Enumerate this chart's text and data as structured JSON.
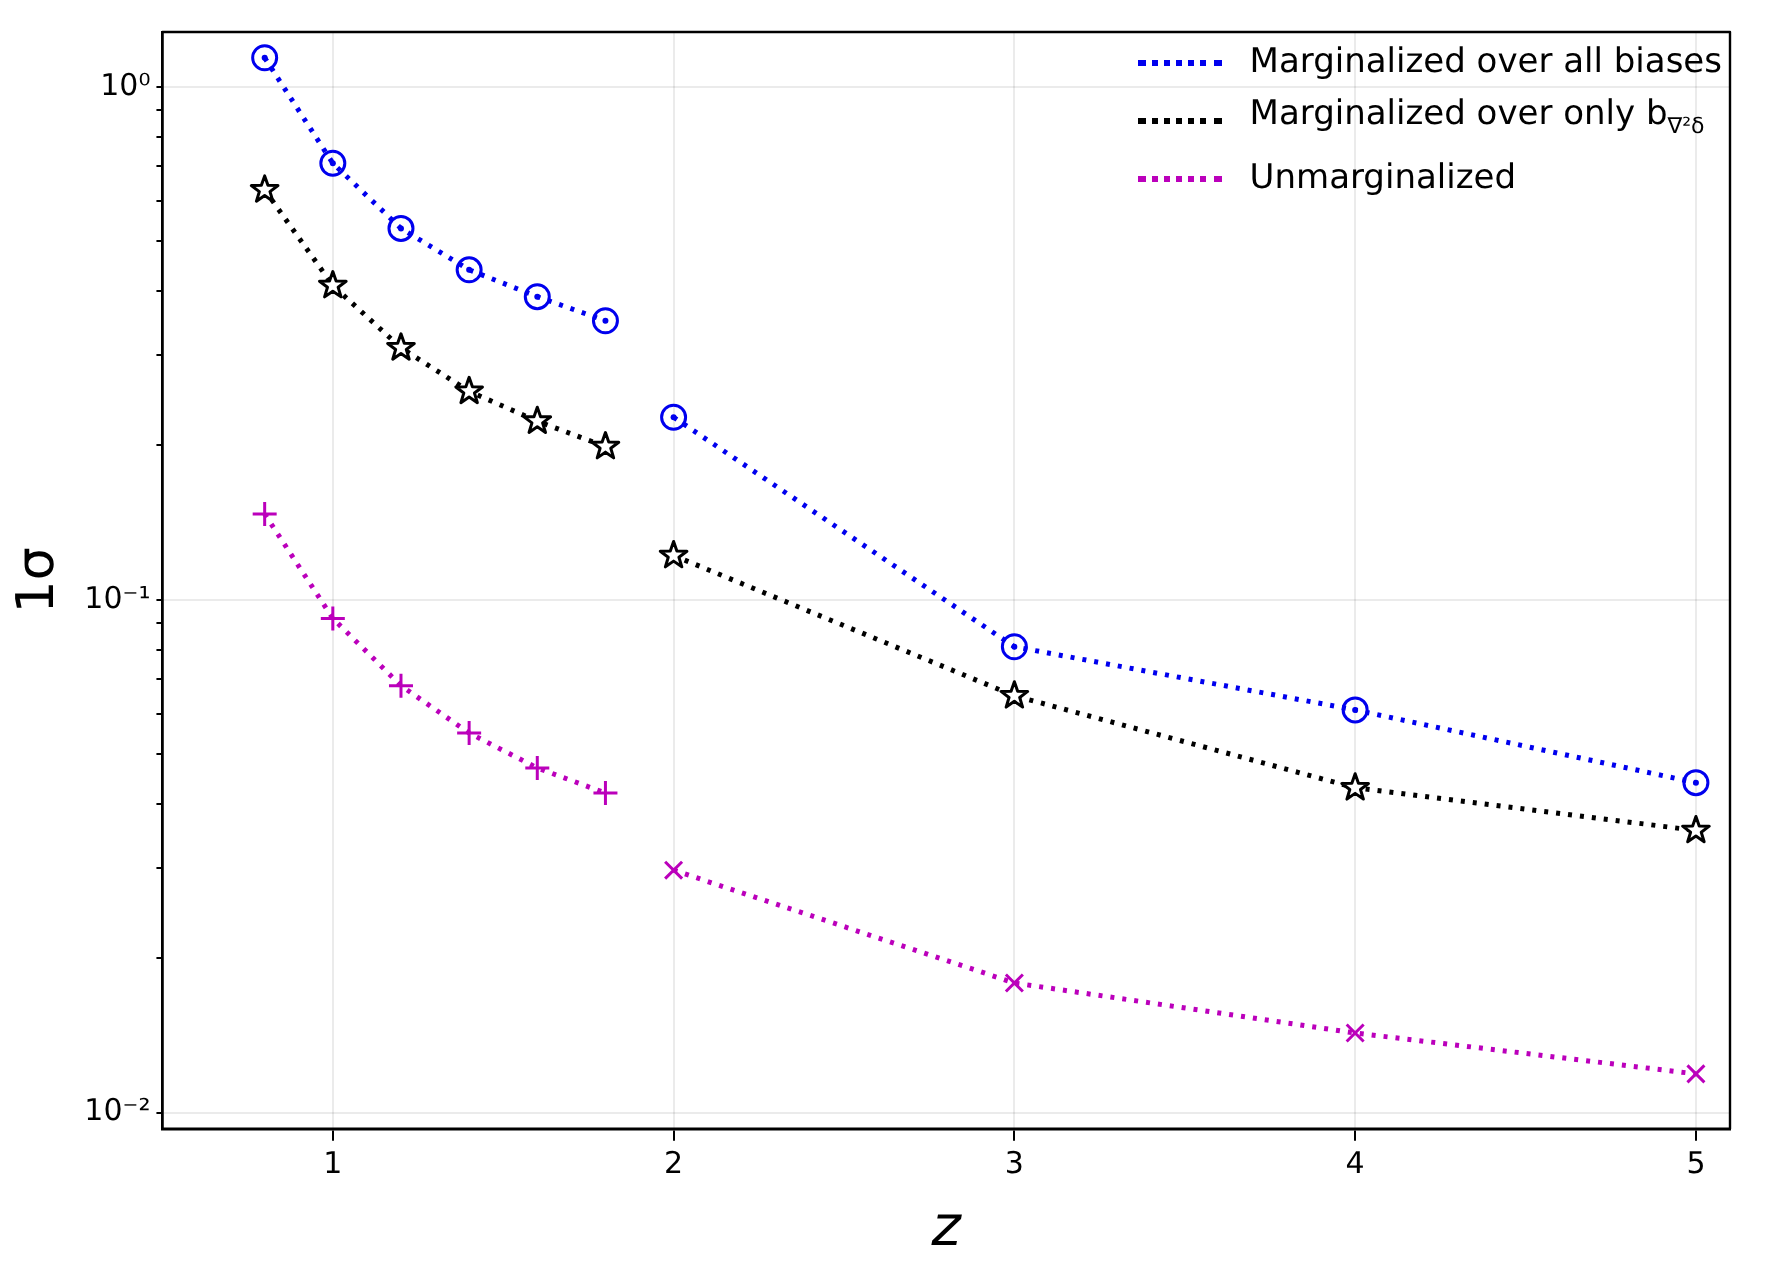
{
  "chart_data": {
    "type": "line",
    "xlabel": "z",
    "ylabel": "1σ",
    "log": "y",
    "grid": true,
    "legend": "top right",
    "line_style": "dotted",
    "xlim": [
      0.5,
      5.1
    ],
    "xticks": [
      1,
      2,
      3,
      4,
      5
    ],
    "ylim": [
      0.0093,
      1.28
    ],
    "yticks": [
      {
        "value": 0.01,
        "label": "10⁻²"
      },
      {
        "value": 0.02,
        "label": null
      },
      {
        "value": 0.03,
        "label": null
      },
      {
        "value": 0.04,
        "label": null
      },
      {
        "value": 0.05,
        "label": null
      },
      {
        "value": 0.06,
        "label": null
      },
      {
        "value": 0.07,
        "label": null
      },
      {
        "value": 0.08,
        "label": null
      },
      {
        "value": 0.09,
        "label": null
      },
      {
        "value": 0.1,
        "label": "10⁻¹"
      },
      {
        "value": 0.2,
        "label": null
      },
      {
        "value": 0.3,
        "label": null
      },
      {
        "value": 0.4,
        "label": null
      },
      {
        "value": 0.5,
        "label": null
      },
      {
        "value": 0.6,
        "label": null
      },
      {
        "value": 0.7,
        "label": null
      },
      {
        "value": 0.8,
        "label": null
      },
      {
        "value": 0.9,
        "label": null
      },
      {
        "value": 1,
        "label": "10⁰"
      }
    ],
    "series": [
      {
        "name": "Marginalized over all biases",
        "color": "#0000ee",
        "marker": "circle",
        "x": [
          0.8,
          1.0,
          1.2,
          1.4,
          1.6,
          1.8
        ],
        "values": [
          1.14,
          0.71,
          0.53,
          0.44,
          0.39,
          0.35
        ]
      },
      {
        "color": "#0000ee",
        "marker": "circle",
        "x": [
          2,
          3,
          4,
          5
        ],
        "values": [
          0.227,
          0.081,
          0.061,
          0.044
        ]
      },
      {
        "name": "Marginalized over only b$_{∇²δ}$",
        "color": "#000000",
        "marker": "star",
        "x": [
          0.8,
          1.0,
          1.2,
          1.4,
          1.6,
          1.8
        ],
        "values": [
          0.63,
          0.41,
          0.31,
          0.255,
          0.223,
          0.199
        ]
      },
      {
        "color": "#000000",
        "marker": "star",
        "x": [
          2,
          3,
          4,
          5
        ],
        "values": [
          0.122,
          0.065,
          0.043,
          0.0355
        ]
      },
      {
        "name": "Unmarginalized",
        "color": "#bb00bb",
        "marker": "plus",
        "x": [
          0.8,
          1.0,
          1.2,
          1.4,
          1.6,
          1.8
        ],
        "values": [
          0.147,
          0.092,
          0.068,
          0.055,
          0.047,
          0.042
        ]
      },
      {
        "color": "#bb00bb",
        "marker": "cross",
        "x": [
          2,
          3,
          4,
          5
        ],
        "values": [
          0.0297,
          0.0179,
          0.0143,
          0.0119
        ]
      }
    ]
  }
}
